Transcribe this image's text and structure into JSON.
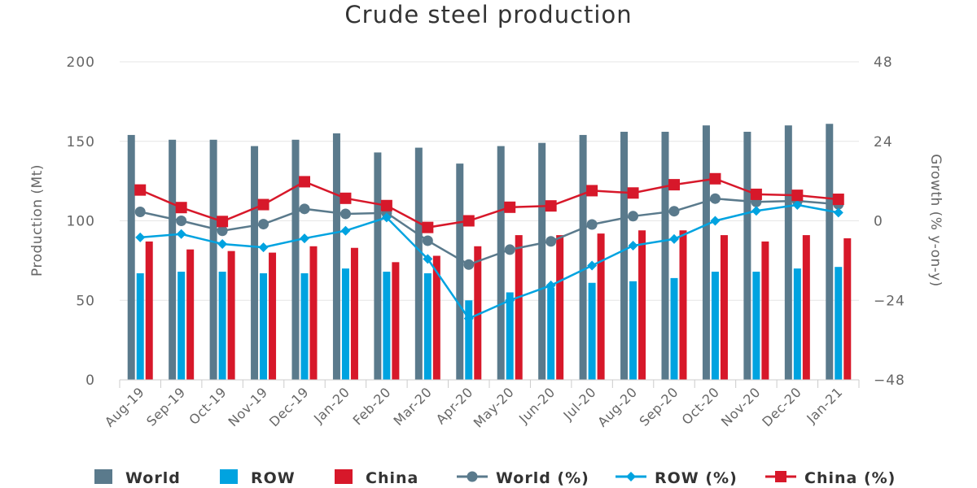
{
  "chart_data": {
    "type": "bar+line",
    "title": "Crude steel production",
    "categories": [
      "Aug-19",
      "Sep-19",
      "Oct-19",
      "Nov-19",
      "Dec-19",
      "Jan-20",
      "Feb-20",
      "Mar-20",
      "Apr-20",
      "May-20",
      "Jun-20",
      "Jul-20",
      "Aug-20",
      "Sep-20",
      "Oct-20",
      "Nov-20",
      "Dec-20",
      "Jan-21"
    ],
    "left_axis": {
      "label": "Production (Mt)",
      "ylim": [
        0,
        200
      ],
      "ticks": [
        "0",
        "50",
        "100",
        "150",
        "200"
      ],
      "tick_values": [
        0,
        50,
        100,
        150,
        200
      ]
    },
    "right_axis": {
      "label": "Growth (% y-on-y)",
      "ylim": [
        -48,
        48
      ],
      "ticks": [
        "−48",
        "−24",
        "0",
        "24",
        "48"
      ],
      "tick_values": [
        -48,
        -24,
        0,
        24,
        48
      ]
    },
    "series": [
      {
        "name": "World",
        "type": "bar",
        "axis": "left",
        "color": "#5a7a8c",
        "values": [
          154,
          151,
          151,
          147,
          151,
          155,
          143,
          146,
          136,
          147,
          149,
          154,
          156,
          156,
          160,
          156,
          160,
          161
        ]
      },
      {
        "name": "ROW",
        "type": "bar",
        "axis": "left",
        "color": "#00a3e0",
        "values": [
          67,
          68,
          68,
          67,
          67,
          70,
          68,
          67,
          50,
          55,
          58,
          61,
          62,
          64,
          68,
          68,
          70,
          71
        ]
      },
      {
        "name": "China",
        "type": "bar",
        "axis": "left",
        "color": "#d7182a",
        "values": [
          87,
          82,
          81,
          80,
          84,
          83,
          74,
          78,
          84,
          91,
          91,
          92,
          94,
          94,
          91,
          87,
          91,
          89
        ]
      },
      {
        "name": "World (%)",
        "type": "line",
        "axis": "right",
        "color": "#5a7a8c",
        "marker": "circle",
        "values": [
          2.7,
          0,
          -3,
          -1,
          3.6,
          2.1,
          2.4,
          -6,
          -13.2,
          -8.7,
          -6.2,
          -1.1,
          1.4,
          2.9,
          6.7,
          5.7,
          6,
          5
        ]
      },
      {
        "name": "ROW (%)",
        "type": "line",
        "axis": "right",
        "color": "#00a3e0",
        "marker": "diamond",
        "values": [
          -5,
          -4,
          -7,
          -8,
          -5.3,
          -3,
          1,
          -11.5,
          -29.5,
          -24,
          -19.5,
          -13.5,
          -7.5,
          -5.5,
          0,
          3,
          4.8,
          2.5
        ]
      },
      {
        "name": "China (%)",
        "type": "line",
        "axis": "right",
        "color": "#d7182a",
        "marker": "square",
        "values": [
          9.3,
          4,
          -0.2,
          4.9,
          11.8,
          6.8,
          4.6,
          -2,
          0,
          4.1,
          4.5,
          9.1,
          8.4,
          10.9,
          12.7,
          8,
          7.7,
          6.5
        ]
      }
    ],
    "legend": {
      "position": "bottom",
      "items": [
        "World",
        "ROW",
        "China",
        "World (%)",
        "ROW (%)",
        "China (%)"
      ]
    }
  }
}
